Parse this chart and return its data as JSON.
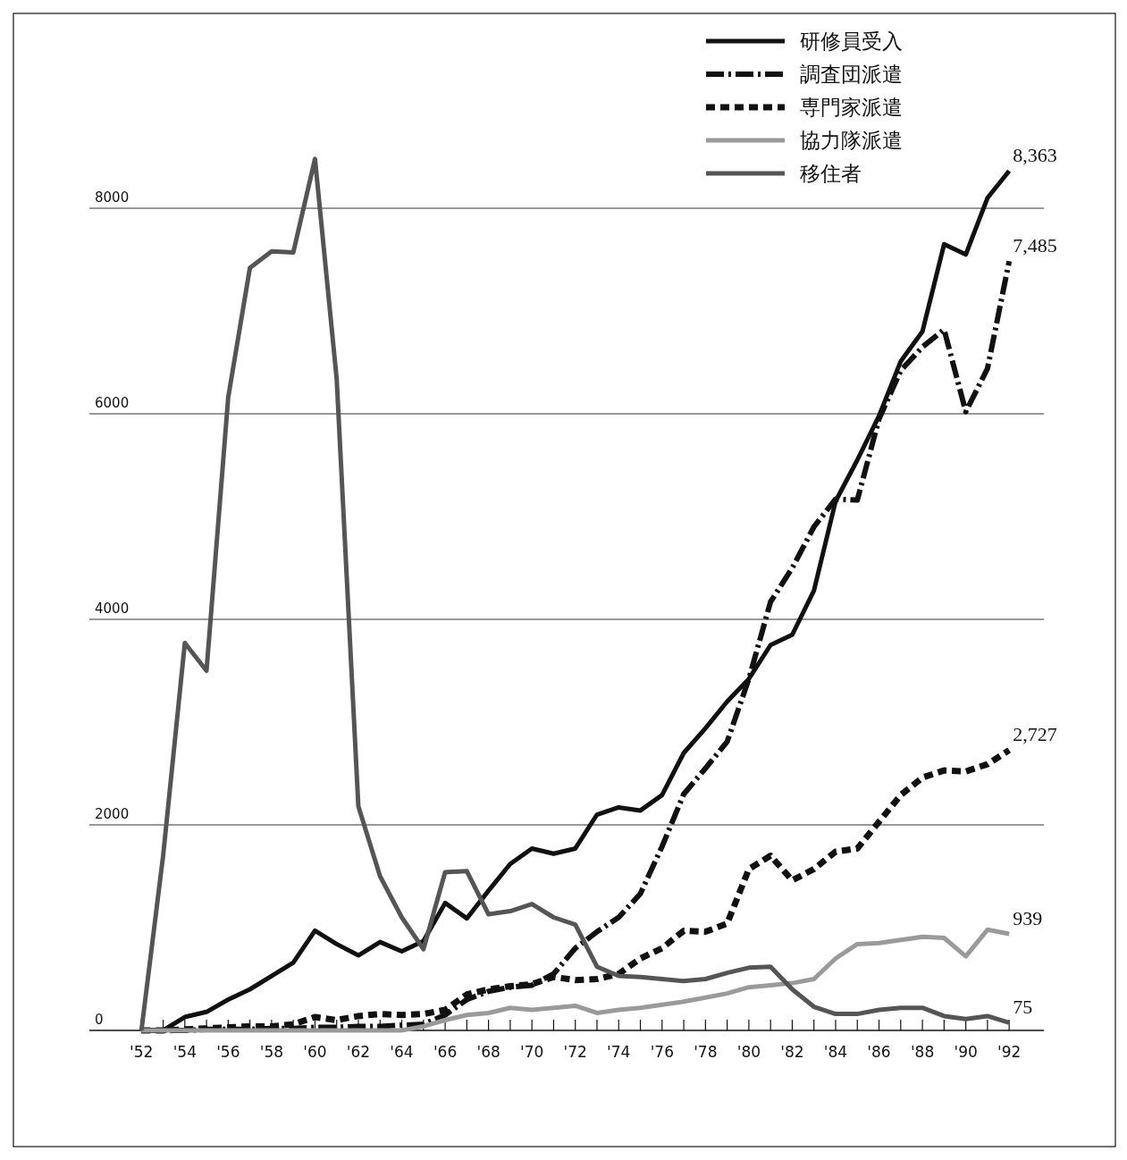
{
  "chart_data": {
    "type": "line",
    "legend": "top right",
    "grid": "y",
    "marker": "none",
    "x": [
      1952,
      1953,
      1954,
      1955,
      1956,
      1957,
      1958,
      1959,
      1960,
      1961,
      1962,
      1963,
      1964,
      1965,
      1966,
      1967,
      1968,
      1969,
      1970,
      1971,
      1972,
      1973,
      1974,
      1975,
      1976,
      1977,
      1978,
      1979,
      1980,
      1981,
      1982,
      1983,
      1984,
      1985,
      1986,
      1987,
      1988,
      1989,
      1990,
      1991,
      1992
    ],
    "xlim": [
      1949.6,
      1993.6
    ],
    "xticks": [
      {
        "value": 1952,
        "label": "'52"
      },
      {
        "value": 1953,
        "label": null
      },
      {
        "value": 1954,
        "label": "'54"
      },
      {
        "value": 1955,
        "label": null
      },
      {
        "value": 1956,
        "label": "'56"
      },
      {
        "value": 1957,
        "label": null
      },
      {
        "value": 1958,
        "label": "'58"
      },
      {
        "value": 1959,
        "label": null
      },
      {
        "value": 1960,
        "label": "'60"
      },
      {
        "value": 1961,
        "label": null
      },
      {
        "value": 1962,
        "label": "'62"
      },
      {
        "value": 1963,
        "label": null
      },
      {
        "value": 1964,
        "label": "'64"
      },
      {
        "value": 1965,
        "label": null
      },
      {
        "value": 1966,
        "label": "'66"
      },
      {
        "value": 1967,
        "label": null
      },
      {
        "value": 1968,
        "label": "'68"
      },
      {
        "value": 1969,
        "label": null
      },
      {
        "value": 1970,
        "label": "'70"
      },
      {
        "value": 1971,
        "label": null
      },
      {
        "value": 1972,
        "label": "'72"
      },
      {
        "value": 1973,
        "label": null
      },
      {
        "value": 1974,
        "label": "'74"
      },
      {
        "value": 1975,
        "label": null
      },
      {
        "value": 1976,
        "label": "'76"
      },
      {
        "value": 1977,
        "label": null
      },
      {
        "value": 1978,
        "label": "'78"
      },
      {
        "value": 1979,
        "label": null
      },
      {
        "value": 1980,
        "label": "'80"
      },
      {
        "value": 1981,
        "label": null
      },
      {
        "value": 1982,
        "label": "'82"
      },
      {
        "value": 1983,
        "label": null
      },
      {
        "value": 1984,
        "label": "'84"
      },
      {
        "value": 1985,
        "label": null
      },
      {
        "value": 1986,
        "label": "'86"
      },
      {
        "value": 1987,
        "label": null
      },
      {
        "value": 1988,
        "label": "'88"
      },
      {
        "value": 1989,
        "label": null
      },
      {
        "value": 1990,
        "label": "'90"
      },
      {
        "value": 1991,
        "label": null
      },
      {
        "value": 1992,
        "label": "'92"
      }
    ],
    "ylim": [
      0,
      9896
    ],
    "yticks": [
      0,
      2000,
      4000,
      6000,
      8000
    ],
    "series": [
      {
        "name": "研修員受入",
        "color": "#111111",
        "line_style": "solid",
        "values": [
          0,
          0,
          130,
          180,
          300,
          400,
          530,
          660,
          970,
          840,
          730,
          860,
          770,
          870,
          1240,
          1090,
          1360,
          1620,
          1770,
          1720,
          1770,
          2100,
          2170,
          2140,
          2290,
          2700,
          2940,
          3200,
          3420,
          3750,
          3850,
          4280,
          5150,
          5550,
          5980,
          6510,
          6800,
          7650,
          7550,
          8100,
          8363
        ],
        "value_labels": [
          null,
          null,
          null,
          null,
          null,
          null,
          null,
          null,
          null,
          null,
          null,
          null,
          null,
          null,
          null,
          null,
          null,
          null,
          null,
          null,
          null,
          null,
          null,
          null,
          null,
          null,
          null,
          null,
          null,
          null,
          null,
          null,
          null,
          null,
          null,
          null,
          null,
          null,
          null,
          null,
          "8,363"
        ]
      },
      {
        "name": "調査団派遣",
        "color": "#111111",
        "line_style": "dashdot",
        "values": [
          0,
          0,
          0,
          10,
          10,
          10,
          20,
          20,
          30,
          30,
          40,
          40,
          50,
          60,
          150,
          300,
          380,
          420,
          440,
          550,
          800,
          960,
          1100,
          1330,
          1790,
          2300,
          2550,
          2810,
          3420,
          4170,
          4500,
          4900,
          5170,
          5160,
          5950,
          6420,
          6650,
          6820,
          6020,
          6440,
          7485
        ],
        "value_labels": [
          null,
          null,
          null,
          null,
          null,
          null,
          null,
          null,
          null,
          null,
          null,
          null,
          null,
          null,
          null,
          null,
          null,
          null,
          null,
          null,
          null,
          null,
          null,
          null,
          null,
          null,
          null,
          null,
          null,
          null,
          null,
          null,
          null,
          null,
          null,
          null,
          null,
          null,
          null,
          null,
          "7,485"
        ]
      },
      {
        "name": "専門家派遣",
        "color": "#111111",
        "line_style": "dashed",
        "values": [
          0,
          0,
          10,
          20,
          30,
          40,
          40,
          60,
          130,
          100,
          140,
          160,
          150,
          160,
          200,
          350,
          400,
          430,
          450,
          520,
          490,
          500,
          550,
          700,
          800,
          970,
          960,
          1040,
          1570,
          1700,
          1460,
          1570,
          1740,
          1770,
          2030,
          2290,
          2460,
          2530,
          2520,
          2590,
          2727
        ],
        "value_labels": [
          null,
          null,
          null,
          null,
          null,
          null,
          null,
          null,
          null,
          null,
          null,
          null,
          null,
          null,
          null,
          null,
          null,
          null,
          null,
          null,
          null,
          null,
          null,
          null,
          null,
          null,
          null,
          null,
          null,
          null,
          null,
          null,
          null,
          null,
          null,
          null,
          null,
          null,
          null,
          null,
          "2,727"
        ]
      },
      {
        "name": "協力隊派遣",
        "color": "#9a9a9a",
        "line_style": "solid",
        "values": [
          0,
          0,
          0,
          0,
          0,
          0,
          0,
          0,
          0,
          0,
          0,
          0,
          0,
          40,
          100,
          150,
          170,
          220,
          200,
          220,
          240,
          170,
          200,
          220,
          250,
          280,
          320,
          360,
          420,
          440,
          460,
          500,
          700,
          840,
          850,
          880,
          910,
          900,
          720,
          980,
          939
        ],
        "value_labels": [
          null,
          null,
          null,
          null,
          null,
          null,
          null,
          null,
          null,
          null,
          null,
          null,
          null,
          null,
          null,
          null,
          null,
          null,
          null,
          null,
          null,
          null,
          null,
          null,
          null,
          null,
          null,
          null,
          null,
          null,
          null,
          null,
          null,
          null,
          null,
          null,
          null,
          null,
          null,
          null,
          "939"
        ]
      },
      {
        "name": "移住者",
        "color": "#555555",
        "line_style": "solid",
        "values": [
          0,
          1700,
          3770,
          3500,
          6160,
          7420,
          7580,
          7570,
          8480,
          6340,
          2180,
          1500,
          1100,
          790,
          1540,
          1550,
          1130,
          1160,
          1230,
          1100,
          1030,
          620,
          530,
          520,
          500,
          480,
          500,
          560,
          610,
          620,
          400,
          230,
          160,
          160,
          200,
          220,
          220,
          140,
          110,
          140,
          75
        ],
        "value_labels": [
          null,
          null,
          null,
          null,
          null,
          null,
          null,
          null,
          null,
          null,
          null,
          null,
          null,
          null,
          null,
          null,
          null,
          null,
          null,
          null,
          null,
          null,
          null,
          null,
          null,
          null,
          null,
          null,
          null,
          null,
          null,
          null,
          null,
          null,
          null,
          null,
          null,
          null,
          null,
          null,
          "75"
        ]
      }
    ]
  }
}
